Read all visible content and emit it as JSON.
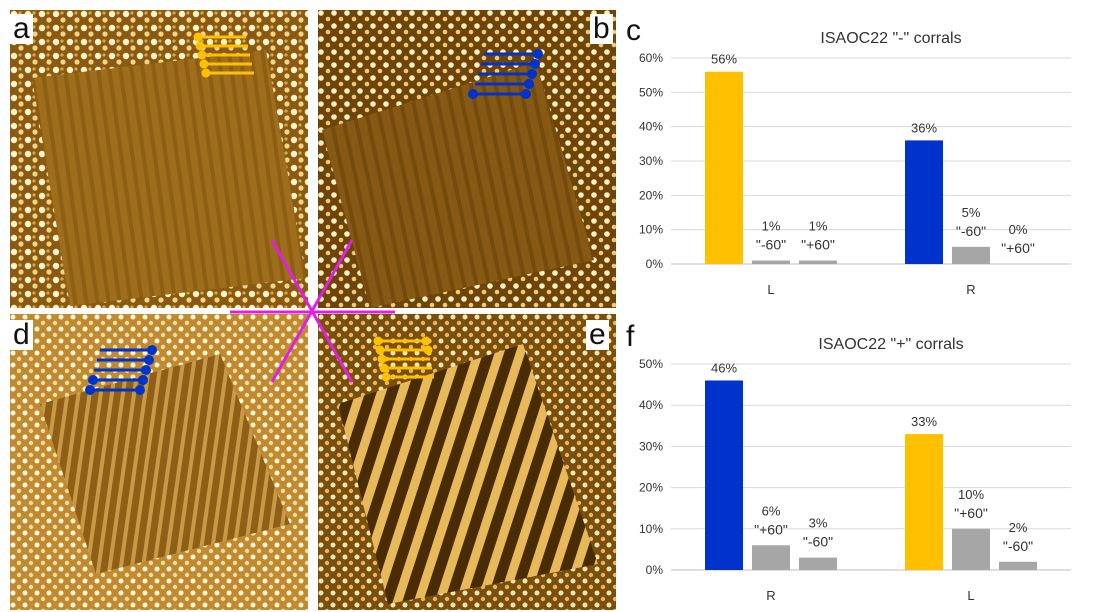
{
  "panel_letters": {
    "a": "a",
    "b": "b",
    "c": "c",
    "d": "d",
    "e": "e",
    "f": "f"
  },
  "colors": {
    "yellow": "#FFC000",
    "blue": "#0033CC",
    "gray": "#A6A6A6",
    "magenta": "#E020E0",
    "stm_dark": "#5A3A08",
    "stm_mid": "#A8761E",
    "stm_light": "#F7E4A6"
  },
  "chart_data": [
    {
      "type": "bar",
      "title": "ISAOC22 \"-\" corrals",
      "categories": [
        "L",
        "R"
      ],
      "ylim": [
        0,
        0.6
      ],
      "yticks": [
        "0%",
        "10%",
        "20%",
        "30%",
        "40%",
        "50%",
        "60%"
      ],
      "gridlines": true,
      "series": [
        {
          "values": [
            0.56,
            0.36
          ],
          "colors": [
            "#FFC000",
            "#0033CC"
          ],
          "labels": [
            "56%",
            "36%"
          ]
        },
        {
          "values": [
            0.01,
            0.05
          ],
          "colors": [
            "#A6A6A6",
            "#A6A6A6"
          ],
          "labels": [
            "1%",
            "5%"
          ],
          "sublabels": [
            "\"-60\"",
            "\"-60\""
          ]
        },
        {
          "values": [
            0.01,
            0.0
          ],
          "colors": [
            "#A6A6A6",
            "#A6A6A6"
          ],
          "labels": [
            "1%",
            "0%"
          ],
          "sublabels": [
            "\"+60\"",
            "\"+60\""
          ]
        }
      ]
    },
    {
      "type": "bar",
      "title": "ISAOC22 \"+\" corrals",
      "categories": [
        "R",
        "L"
      ],
      "ylim": [
        0,
        0.5
      ],
      "yticks": [
        "0%",
        "10%",
        "20%",
        "30%",
        "40%",
        "50%"
      ],
      "gridlines": true,
      "series": [
        {
          "values": [
            0.46,
            0.33
          ],
          "colors": [
            "#0033CC",
            "#FFC000"
          ],
          "labels": [
            "46%",
            "33%"
          ]
        },
        {
          "values": [
            0.06,
            0.1
          ],
          "colors": [
            "#A6A6A6",
            "#A6A6A6"
          ],
          "labels": [
            "6%",
            "10%"
          ],
          "sublabels": [
            "\"+60\"",
            "\"+60\""
          ]
        },
        {
          "values": [
            0.03,
            0.02
          ],
          "colors": [
            "#A6A6A6",
            "#A6A6A6"
          ],
          "labels": [
            "3%",
            "2%"
          ],
          "sublabels": [
            "\"-60\"",
            "\"-60\""
          ]
        }
      ]
    }
  ]
}
